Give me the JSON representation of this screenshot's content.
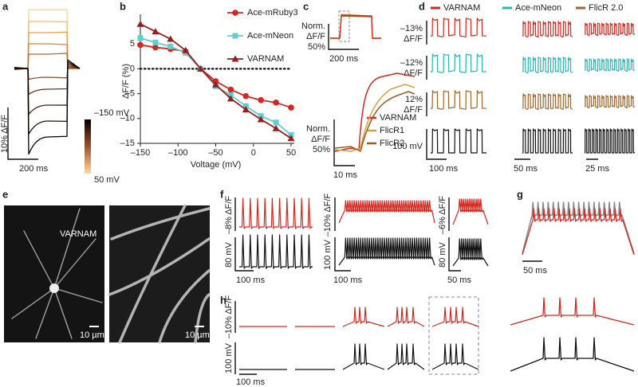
{
  "panels": {
    "a": {
      "label": "a",
      "scale_y": "10% ΔF/F",
      "scale_x": "200 ms",
      "colorbar_top": "–150 mV",
      "colorbar_bottom": "50 mV"
    },
    "b": {
      "label": "b"
    },
    "c": {
      "label": "c",
      "top_scale_y": [
        "Norm.",
        "ΔF/F",
        "50%"
      ],
      "top_scale_x": "200 ms",
      "zoom_scale_y": [
        "Norm.",
        "ΔF/F",
        "50%"
      ],
      "zoom_scale_x": "10 ms",
      "legend": [
        "VARNAM",
        "FlicR1",
        "FlicR2"
      ]
    },
    "d": {
      "label": "d",
      "legend": [
        "VARNAM",
        "Ace-mNeon",
        "FlicR 2.0"
      ],
      "row_labels": [
        [
          "–13%",
          "ΔF/F"
        ],
        [
          "–12%",
          "ΔF/F"
        ],
        [
          "12%",
          "ΔF/F"
        ],
        [
          "100 mV"
        ]
      ],
      "time_scales": [
        "100 ms",
        "50 ms",
        "25 ms"
      ]
    },
    "e": {
      "label": "e",
      "image_label": "VARNAM",
      "scale_bars": [
        "10 µm",
        "10 µm"
      ]
    },
    "f": {
      "label": "f",
      "fluor_scales": [
        "–8% ΔF/F",
        "–10% ΔF/F",
        "–6% ΔF/F"
      ],
      "volt_scales": [
        "80 mV",
        "100 mV",
        "80 mV"
      ],
      "time_scales": [
        "100 ms",
        "100 ms",
        "50 ms"
      ]
    },
    "g": {
      "label": "g",
      "time_scale": "50 ms"
    },
    "h": {
      "label": "h",
      "fluor_scale": "–10% ΔF/F",
      "volt_scale": "100 mV",
      "time_scale": "100 ms"
    }
  },
  "chart_data": {
    "type": "line",
    "xlabel": "Voltage (mV)",
    "ylabel": "ΔF/F (%)",
    "x": [
      -150,
      -130,
      -110,
      -90,
      -70,
      -50,
      -30,
      -10,
      10,
      30,
      50
    ],
    "series": [
      {
        "name": "Ace-mRuby3",
        "color": "#d7261e",
        "marker": "circle",
        "values": [
          4.8,
          4.3,
          4.0,
          3.5,
          0,
          -2.5,
          -4.2,
          -5.5,
          -6.3,
          -6.8,
          -7.8
        ]
      },
      {
        "name": "Ace-mNeon",
        "color": "#5fcfcf",
        "marker": "square",
        "values": [
          6.2,
          5.3,
          4.5,
          3.2,
          0,
          -3.5,
          -5.3,
          -7.5,
          -9.5,
          -10.8,
          -13.3
        ]
      },
      {
        "name": "VARNAM",
        "color": "#9b1c1c",
        "marker": "triangle",
        "values": [
          9.0,
          7.5,
          6.0,
          3.7,
          0,
          -3.2,
          -6.0,
          -8.2,
          -10.2,
          -12.0,
          -14.0
        ]
      }
    ],
    "xlim": [
      -150,
      50
    ],
    "ylim": [
      -15,
      10
    ],
    "xticks": [
      {
        "value": -150,
        "label": "–150"
      },
      {
        "value": -100,
        "label": "–100"
      },
      {
        "value": -50,
        "label": "–50"
      },
      0,
      50
    ],
    "yticks": [
      {
        "value": -15,
        "label": "–15"
      },
      {
        "value": -10,
        "label": "–10"
      },
      {
        "value": -5,
        "label": "–5"
      },
      0,
      5
    ],
    "legend": "upper right"
  }
}
